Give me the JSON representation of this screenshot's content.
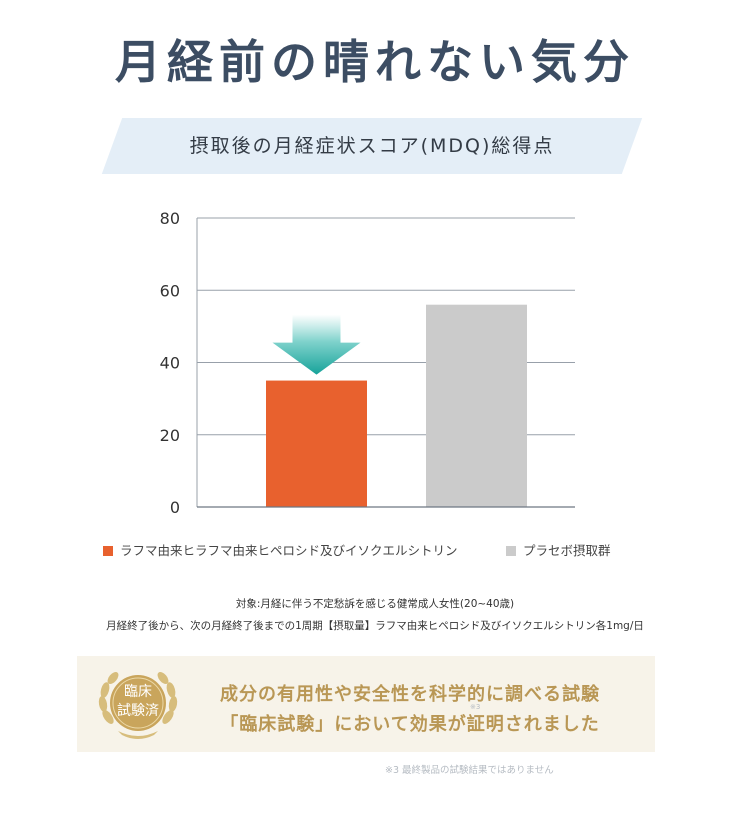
{
  "title": "月経前の晴れない気分",
  "banner": "摂取後の月経症状スコア(MDQ)総得点",
  "chart_data": {
    "type": "bar",
    "categories": [
      "ラフマ由来ヒラフマ由来ヒペロシド及びイソクエルシトリン",
      "プラセボ摂取群"
    ],
    "values": [
      35,
      56
    ],
    "colors": [
      "#e8612e",
      "#cbcbcb"
    ],
    "ylim": [
      0,
      80
    ],
    "yticks": [
      0,
      20,
      40,
      60,
      80
    ],
    "grid": true,
    "legend_position": "bottom",
    "annotation": "down-arrow"
  },
  "legend": {
    "item1": "ラフマ由来ヒラフマ由来ヒペロシド及びイソクエルシトリン",
    "item2": "プラセボ摂取群"
  },
  "notes": {
    "line1": "対象:月経に伴う不定愁訴を感じる健常成人女性(20~40歳)",
    "line2": "月経終了後から、次の月経終了後までの1周期【摂取量】ラフマ由来ヒペロシド及びイソクエルシトリン各1mg/日"
  },
  "seal": {
    "line1": "臨床",
    "line2": "試験済"
  },
  "claim": {
    "line1": "成分の有用性や安全性を科学的に調べる試験",
    "line2": "「臨床試験」において効果が証明されました",
    "ref": "※3"
  },
  "footnote": "※3 最終製品の試験結果ではありません"
}
